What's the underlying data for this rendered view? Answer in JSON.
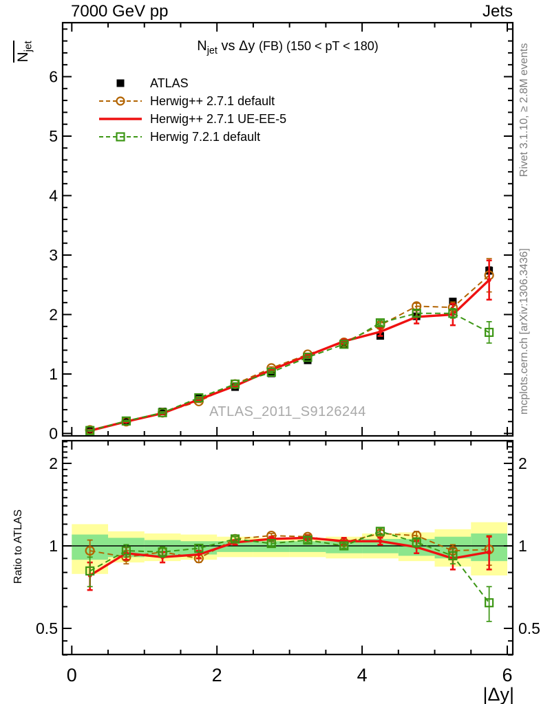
{
  "header": {
    "left": "7000 GeV pp",
    "right": "Jets"
  },
  "title": {
    "base": "N",
    "sub": "jet",
    "rest": " vs Δy ",
    "paren": "(FB) (150 < pT < 180)"
  },
  "axis_labels": {
    "top_y_base": "N",
    "top_y_sub": "jet",
    "ratio_y": "Ratio to ATLAS",
    "x": "|Δy|"
  },
  "side_notes": {
    "top": "Rivet 3.1.10, ≥ 2.8M events",
    "bottom": "mcplots.cern.ch [arXiv:1306.3436]"
  },
  "watermark": "ATLAS_2011_S9126244",
  "colors": {
    "atlas": "#000000",
    "herwig_default": "#b26300",
    "herwig_ueee5": "#ee1111",
    "herwig7": "#3c9614",
    "band_yellow": "#ffff9c",
    "band_green": "#8ce68c",
    "note_gray": "#7d7d7d",
    "watermark_gray": "#a9a9a9"
  },
  "chart_data": {
    "type": "line",
    "title": "N_jet vs Δy (FB) (150 < pT < 180)",
    "xlabel": "|Δy|",
    "xlim": [
      -0.12,
      6.08
    ],
    "xticks": [
      0,
      2,
      4,
      6
    ],
    "x_minor_step": 0.5,
    "x": [
      0.25,
      0.75,
      1.25,
      1.75,
      2.25,
      2.75,
      3.25,
      3.75,
      4.25,
      4.75,
      5.25,
      5.75
    ],
    "bin_edges": [
      0,
      0.5,
      1,
      1.5,
      2,
      2.5,
      3,
      3.5,
      4,
      4.5,
      5,
      5.5,
      6
    ],
    "top_panel": {
      "ylabel": "N̄_jet",
      "ylim": [
        -0.04,
        6.9
      ],
      "yticks": [
        0,
        1,
        2,
        3,
        4,
        5,
        6
      ],
      "y_minor_step": 0.2,
      "series": [
        {
          "name": "ATLAS",
          "color": "#000000",
          "line": "none",
          "marker": "filled-square",
          "values": [
            0.06,
            0.21,
            0.37,
            0.61,
            0.78,
            1.01,
            1.23,
            1.5,
            1.64,
            1.97,
            2.22,
            2.74
          ],
          "errors": [
            0.015,
            0.015,
            0.015,
            0.02,
            0.02,
            0.02,
            0.02,
            0.03,
            0.03,
            0.04,
            0.05,
            0.06
          ]
        },
        {
          "name": "Herwig++ 2.7.1 default",
          "color": "#b26300",
          "line": "dashed",
          "marker": "open-circle",
          "values": [
            0.058,
            0.2,
            0.35,
            0.54,
            0.83,
            1.1,
            1.33,
            1.53,
            1.82,
            2.14,
            2.12,
            2.66
          ],
          "errors": [
            0.01,
            0.01,
            0.015,
            0.02,
            0.02,
            0.02,
            0.02,
            0.03,
            0.04,
            0.05,
            0.09,
            0.28
          ]
        },
        {
          "name": "Herwig++ 2.7.1 UE-EE-5",
          "color": "#ee1111",
          "line": "solid",
          "marker": "dot",
          "values": [
            0.047,
            0.2,
            0.34,
            0.57,
            0.8,
            1.07,
            1.31,
            1.55,
            1.71,
            1.96,
            2.0,
            2.58
          ],
          "errors": [
            0.01,
            0.01,
            0.015,
            0.02,
            0.02,
            0.02,
            0.02,
            0.03,
            0.07,
            0.11,
            0.18,
            0.33
          ]
        },
        {
          "name": "Herwig 7.2.1 default",
          "color": "#3c9614",
          "line": "dashed",
          "marker": "open-square",
          "values": [
            0.049,
            0.21,
            0.35,
            0.6,
            0.83,
            1.03,
            1.28,
            1.5,
            1.86,
            2.02,
            2.02,
            1.7
          ],
          "errors": [
            0.01,
            0.01,
            0.015,
            0.02,
            0.02,
            0.02,
            0.02,
            0.03,
            0.04,
            0.05,
            0.08,
            0.18
          ]
        }
      ],
      "watermark": "ATLAS_2011_S9126244"
    },
    "ratio_panel": {
      "ylabel": "Ratio to ATLAS",
      "yscale": "log",
      "ylim": [
        0.4,
        2.42
      ],
      "yticks": [
        0.5,
        1,
        2
      ],
      "ytick_labels": [
        "0.5",
        "1",
        "2"
      ],
      "reference_line": 1,
      "bands": {
        "yellow_color": "#ffff9c",
        "green_color": "#8ce68c",
        "yellow": [
          [
            0.79,
            1.2
          ],
          [
            0.87,
            1.13
          ],
          [
            0.88,
            1.11
          ],
          [
            0.89,
            1.1
          ],
          [
            0.91,
            1.08
          ],
          [
            0.91,
            1.07
          ],
          [
            0.91,
            1.07
          ],
          [
            0.9,
            1.08
          ],
          [
            0.9,
            1.11
          ],
          [
            0.88,
            1.12
          ],
          [
            0.84,
            1.15
          ],
          [
            0.78,
            1.22
          ]
        ],
        "green": [
          [
            0.89,
            1.1
          ],
          [
            0.91,
            1.07
          ],
          [
            0.92,
            1.05
          ],
          [
            0.93,
            1.04
          ],
          [
            0.95,
            1.04
          ],
          [
            0.95,
            1.04
          ],
          [
            0.95,
            1.04
          ],
          [
            0.94,
            1.04
          ],
          [
            0.94,
            1.06
          ],
          [
            0.92,
            1.06
          ],
          [
            0.9,
            1.08
          ],
          [
            0.88,
            1.11
          ]
        ]
      },
      "series": [
        {
          "name": "Herwig++ 2.7.1 default",
          "values": [
            0.96,
            0.91,
            0.95,
            0.9,
            1.06,
            1.09,
            1.08,
            1.03,
            1.11,
            1.09,
            0.96,
            0.97
          ],
          "errors": [
            0.09,
            0.05,
            0.04,
            0.03,
            0.02,
            0.02,
            0.02,
            0.02,
            0.03,
            0.04,
            0.05,
            0.12
          ]
        },
        {
          "name": "Herwig++ 2.7.1 UE-EE-5",
          "values": [
            0.78,
            0.94,
            0.91,
            0.93,
            1.03,
            1.06,
            1.07,
            1.04,
            1.04,
            0.99,
            0.9,
            0.95
          ],
          "errors": [
            0.09,
            0.05,
            0.04,
            0.03,
            0.02,
            0.02,
            0.02,
            0.03,
            0.03,
            0.05,
            0.08,
            0.13
          ]
        },
        {
          "name": "Herwig 7.2.1 default",
          "values": [
            0.81,
            0.96,
            0.95,
            0.98,
            1.06,
            1.02,
            1.05,
            1.0,
            1.13,
            1.03,
            0.92,
            0.62
          ],
          "errors": [
            0.1,
            0.05,
            0.04,
            0.03,
            0.02,
            0.02,
            0.02,
            0.02,
            0.03,
            0.04,
            0.06,
            0.09
          ]
        }
      ]
    }
  }
}
